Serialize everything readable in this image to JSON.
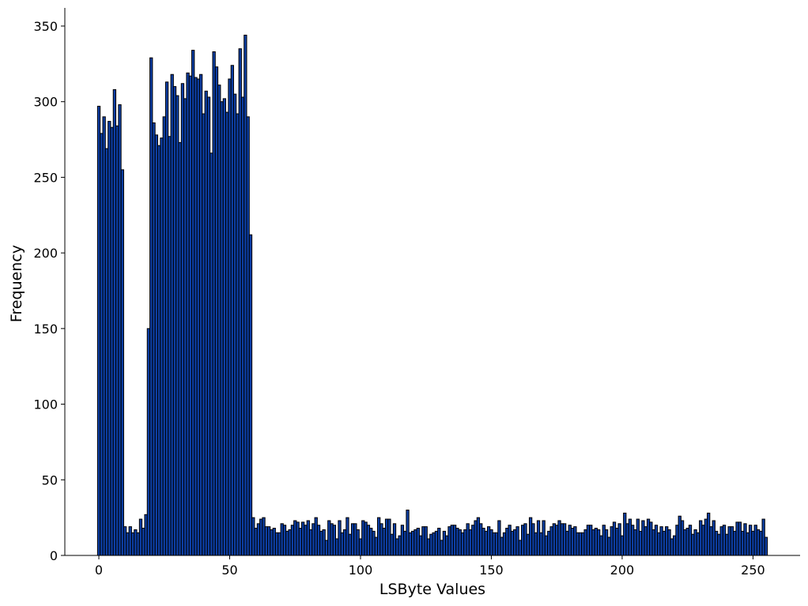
{
  "chart_data": {
    "type": "bar",
    "xlabel": "LSByte Values",
    "ylabel": "Frequency",
    "xlim": [
      -13,
      268
    ],
    "ylim": [
      0,
      362
    ],
    "x_ticks": [
      0,
      50,
      100,
      150,
      200,
      250
    ],
    "y_ticks": [
      0,
      50,
      100,
      150,
      200,
      250,
      300,
      350
    ],
    "grid": false,
    "bar_color": "#0d3fa6",
    "edge_color": "#000000",
    "categories_start": 0,
    "values": [
      297,
      279,
      290,
      269,
      287,
      283,
      308,
      284,
      298,
      255,
      19,
      15,
      19,
      15,
      17,
      15,
      24,
      18,
      27,
      150,
      329,
      286,
      278,
      271,
      276,
      290,
      313,
      277,
      318,
      310,
      304,
      273,
      312,
      302,
      319,
      317,
      334,
      316,
      315,
      318,
      292,
      307,
      303,
      266,
      333,
      323,
      311,
      300,
      302,
      293,
      315,
      324,
      305,
      292,
      335,
      303,
      344,
      290,
      212,
      25,
      18,
      21,
      24,
      25,
      19,
      19,
      17,
      18,
      15,
      15,
      21,
      20,
      16,
      17,
      20,
      23,
      22,
      18,
      22,
      20,
      23,
      17,
      21,
      25,
      20,
      16,
      17,
      10,
      23,
      21,
      20,
      11,
      23,
      15,
      17,
      25,
      14,
      21,
      21,
      17,
      11,
      23,
      22,
      20,
      18,
      16,
      12,
      25,
      21,
      18,
      24,
      24,
      14,
      21,
      11,
      13,
      20,
      16,
      30,
      15,
      16,
      17,
      18,
      13,
      19,
      19,
      11,
      14,
      15,
      16,
      18,
      10,
      16,
      13,
      19,
      20,
      20,
      18,
      17,
      15,
      17,
      21,
      17,
      20,
      23,
      25,
      21,
      18,
      16,
      19,
      17,
      15,
      15,
      23,
      12,
      15,
      18,
      20,
      16,
      17,
      19,
      10,
      20,
      21,
      14,
      25,
      21,
      15,
      23,
      15,
      23,
      13,
      16,
      19,
      21,
      20,
      23,
      21,
      21,
      16,
      20,
      18,
      19,
      15,
      15,
      15,
      17,
      20,
      20,
      17,
      18,
      17,
      13,
      20,
      17,
      12,
      19,
      22,
      18,
      21,
      13,
      28,
      21,
      24,
      20,
      17,
      24,
      16,
      23,
      19,
      24,
      22,
      17,
      20,
      15,
      19,
      16,
      19,
      17,
      11,
      13,
      20,
      26,
      23,
      17,
      18,
      20,
      14,
      17,
      15,
      23,
      20,
      24,
      28,
      19,
      23,
      16,
      14,
      19,
      20,
      14,
      19,
      19,
      16,
      22,
      22,
      16,
      21,
      15,
      20,
      16,
      20,
      17,
      16,
      24,
      12
    ]
  }
}
